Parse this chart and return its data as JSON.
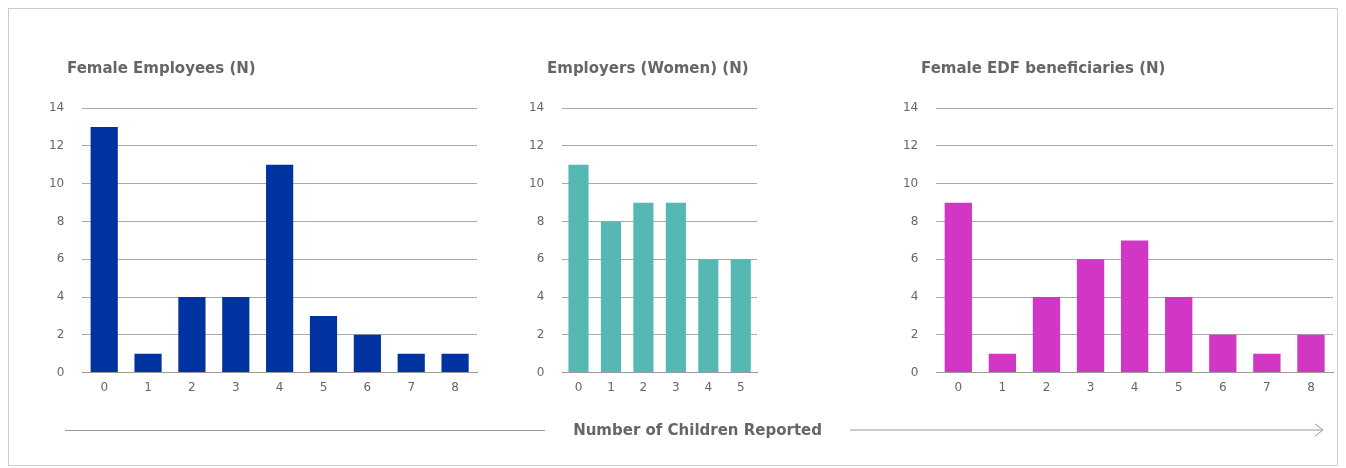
{
  "chart_data": [
    {
      "type": "bar",
      "title": "Female Employees (N)",
      "categories": [
        "0",
        "1",
        "2",
        "3",
        "4",
        "5",
        "6",
        "7",
        "8"
      ],
      "values": [
        13,
        1,
        4,
        4,
        11,
        3,
        2,
        1,
        1
      ],
      "color": "#0033a0",
      "ylim": [
        0,
        14
      ],
      "yticks": [
        0,
        2,
        4,
        6,
        8,
        10,
        12,
        14
      ],
      "grid": "y"
    },
    {
      "type": "bar",
      "title": "Employers (Women) (N)",
      "xlabel": "Number of Children Reported",
      "categories": [
        "0",
        "1",
        "2",
        "3",
        "4",
        "5"
      ],
      "values": [
        11,
        8,
        9,
        9,
        6,
        6
      ],
      "color": "#56b8b3",
      "ylim": [
        0,
        14
      ],
      "yticks": [
        0,
        2,
        4,
        6,
        8,
        10,
        12,
        14
      ],
      "grid": "y"
    },
    {
      "type": "bar",
      "title": "Female EDF beneficiaries (N)",
      "categories": [
        "0",
        "1",
        "2",
        "3",
        "4",
        "5",
        "6",
        "7",
        "8"
      ],
      "values": [
        9,
        1,
        4,
        6,
        7,
        4,
        2,
        1,
        2
      ],
      "color": "#d136c5",
      "ylim": [
        0,
        14
      ],
      "yticks": [
        0,
        2,
        4,
        6,
        8,
        10,
        12,
        14
      ],
      "grid": "y"
    }
  ]
}
